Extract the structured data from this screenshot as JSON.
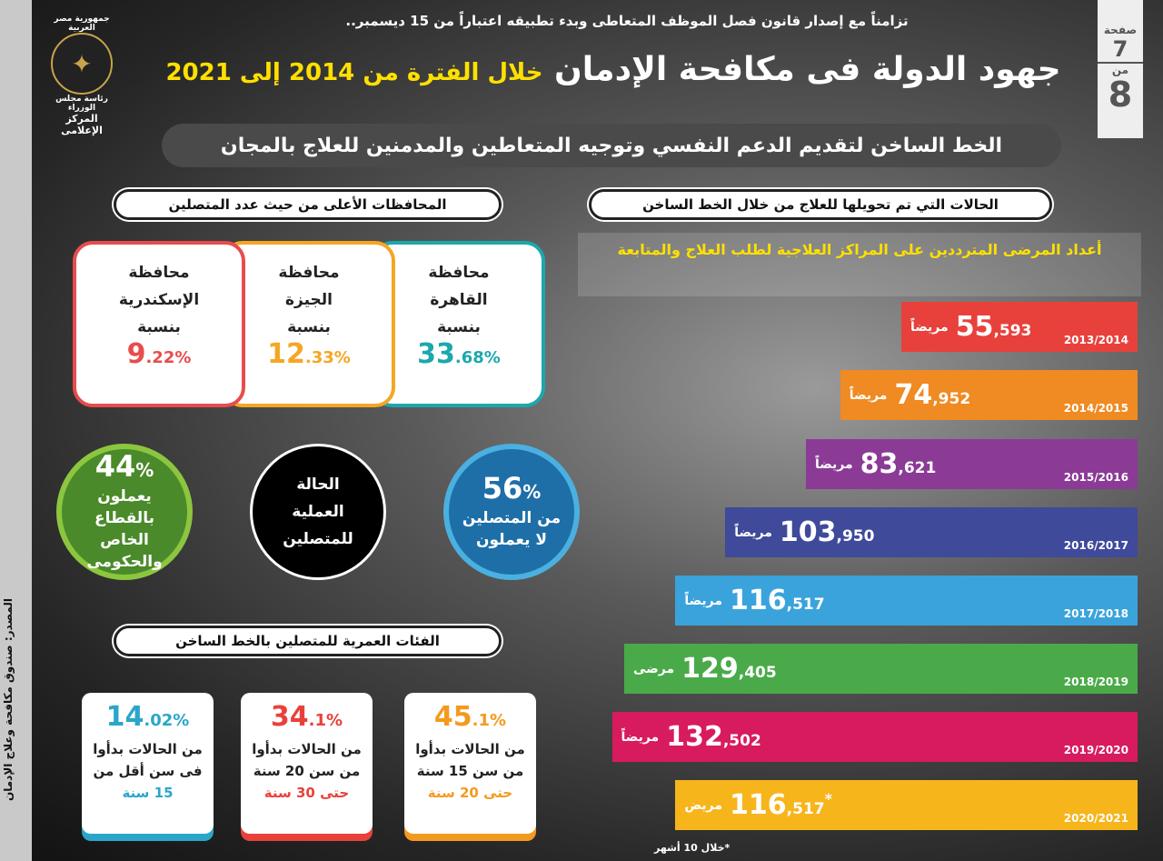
{
  "header": {
    "intro": "تزامناً مع إصدار قانون فصل الموظف المتعاطى وبدء تطبيقه اعتباراً من 15 ديسمبر..",
    "title_main": "جهود الدولة فى مكافحة الإدمان",
    "title_highlight": "خلال الفترة من 2014 إلى 2021",
    "subtitle": "الخط الساخن لتقديم الدعم النفسي وتوجيه المتعاطين والمدمنين للعلاج بالمجان"
  },
  "page": {
    "label": "صفحة",
    "current": "7",
    "of": "من",
    "total": "8"
  },
  "logo": {
    "line1": "جمهورية مصر العربية",
    "line2": "رئاسة مجلس الوزراء",
    "line3": "المركز الإعلامى"
  },
  "source": "المصدر: صندوق مكافحة وعلاج الإدمان",
  "colors": {
    "c2014": "#e8413c",
    "c2015": "#f08a22",
    "c2016": "#8b3a96",
    "c2017": "#3f4a9a",
    "c2018": "#3aa3dc",
    "c2019": "#4aaa4a",
    "c2020": "#d81b5e",
    "c2021": "#f7b51c"
  },
  "chart_data": {
    "type": "bar",
    "title": "الحالات التي تم تحويلها للعلاج من خلال الخط الساخن",
    "subtitle": "أعداد المرضى المترددين على المراكز العلاجية لطلب العلاج والمتابعة",
    "categories": [
      "2013/2014",
      "2014/2015",
      "2015/2016",
      "2016/2017",
      "2017/2018",
      "2018/2019",
      "2019/2020",
      "2020/2021"
    ],
    "values": [
      55593,
      74952,
      83621,
      103950,
      116517,
      129405,
      132502,
      116517
    ],
    "labels_big": [
      "55",
      "74",
      "83",
      "103",
      "116",
      "129",
      "132",
      "116"
    ],
    "labels_small": [
      ",593",
      ",952",
      ",621",
      ",950",
      ",517",
      ",405",
      ",502",
      ",517"
    ],
    "units": [
      "مريضاً",
      "مريضاً",
      "مريضاً",
      "مريضاً",
      "مريضاً",
      "مرضى",
      "مريضاً",
      "مريض"
    ],
    "asterisk": "*",
    "note": "*خلال 10 أشهر"
  },
  "governorates": {
    "title": "المحافظات الأعلى من حيث عدد المتصلين",
    "items": [
      {
        "l1": "محافظة",
        "l2": "القاهرة",
        "l3": "بنسبة",
        "big": "33",
        "small": ".68%",
        "color": "#1ba8ad"
      },
      {
        "l1": "محافظة",
        "l2": "الجيزة",
        "l3": "بنسبة",
        "big": "12",
        "small": ".33%",
        "color": "#f5a623"
      },
      {
        "l1": "محافظة",
        "l2": "الإسكندرية",
        "l3": "بنسبة",
        "big": "9",
        "small": ".22%",
        "color": "#e84c4c"
      }
    ]
  },
  "work": {
    "center": "الحالة العملية للمتصلين",
    "right_pct": "56",
    "right_pct_sign": "%",
    "right_text": "من المتصلين لا يعملون",
    "left_pct": "44",
    "left_pct_sign": "%",
    "left_text": "يعملون بالقطاع الخاص والحكومى"
  },
  "ages": {
    "title": "الفئات العمرية للمتصلين بالخط الساخن",
    "items": [
      {
        "big": "45",
        "small": ".1%",
        "t1": "من الحالات بدأوا",
        "t2": "من سن 15 سنة",
        "t3": "حتى 20 سنة",
        "color": "#f39a1e"
      },
      {
        "big": "34",
        "small": ".1%",
        "t1": "من الحالات بدأوا",
        "t2": "من سن 20 سنة",
        "t3": "حتى 30 سنة",
        "color": "#e8413c"
      },
      {
        "big": "14",
        "small": ".02%",
        "t1": "من الحالات بدأوا",
        "t2": "فى سن أقل من",
        "t3": "15 سنة",
        "color": "#2aa6c9"
      }
    ]
  }
}
